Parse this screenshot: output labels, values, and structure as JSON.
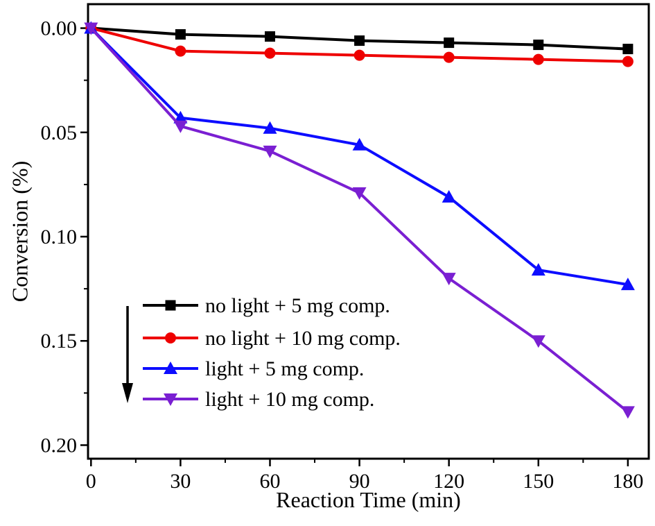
{
  "chart_data": {
    "type": "line",
    "title": "",
    "xlabel": "Reaction Time (min)",
    "ylabel": "Conversion (%)",
    "x": [
      0,
      30,
      60,
      90,
      120,
      150,
      180
    ],
    "xticks": [
      0,
      30,
      60,
      90,
      120,
      150,
      180
    ],
    "xtick_minor_step": 15,
    "yticks": [
      0.0,
      0.05,
      0.1,
      0.15,
      0.2
    ],
    "ytick_labels": [
      "0.00",
      "0.05",
      "0.10",
      "0.15",
      "0.20"
    ],
    "ytick_minor_step": 0.025,
    "xlim": [
      -1,
      187
    ],
    "ylim": [
      -0.0115,
      0.2065
    ],
    "y_axis_inverted": true,
    "grid": false,
    "legend_position": "inside-lower-left",
    "series": [
      {
        "name": "no light + 5 mg comp.",
        "color": "#000000",
        "marker": "square",
        "values": [
          0.0,
          0.003,
          0.004,
          0.006,
          0.007,
          0.008,
          0.01
        ]
      },
      {
        "name": "no light + 10 mg comp.",
        "color": "#ee0000",
        "marker": "circle",
        "values": [
          0.0,
          0.011,
          0.012,
          0.013,
          0.014,
          0.015,
          0.016
        ]
      },
      {
        "name": "light + 5 mg comp.",
        "color": "#0d0dff",
        "marker": "triangle-up",
        "values": [
          0.0,
          0.043,
          0.048,
          0.056,
          0.081,
          0.116,
          0.123
        ]
      },
      {
        "name": "light + 10 mg comp.",
        "color": "#7a1fd2",
        "marker": "triangle-down",
        "values": [
          0.0,
          0.047,
          0.059,
          0.079,
          0.12,
          0.15,
          0.184
        ]
      }
    ],
    "annotations": [
      {
        "type": "arrow-down",
        "meaning": "conversion increases downward (inverted axis)"
      }
    ]
  }
}
